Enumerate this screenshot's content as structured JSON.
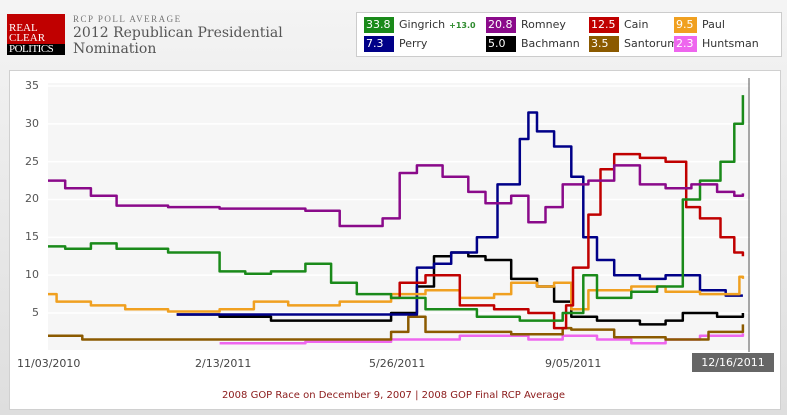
{
  "header": {
    "logo": [
      "REAL",
      "CLEAR",
      "POLITICS"
    ],
    "kicker": "RCP POLL AVERAGE",
    "title": "2012 Republican Presidential Nomination"
  },
  "legend": [
    {
      "value": "33.8",
      "name": "Gingrich",
      "change": "+13.0",
      "color": "#1a8a1a"
    },
    {
      "value": "20.8",
      "name": "Romney",
      "color": "#8a0a8a"
    },
    {
      "value": "12.5",
      "name": "Cain",
      "color": "#c00000"
    },
    {
      "value": "9.5",
      "name": "Paul",
      "color": "#f0a020"
    },
    {
      "value": "7.3",
      "name": "Perry",
      "color": "#000088"
    },
    {
      "value": "5.0",
      "name": "Bachmann",
      "color": "#000000"
    },
    {
      "value": "3.5",
      "name": "Santorum",
      "color": "#8b5a00"
    },
    {
      "value": "2.3",
      "name": "Huntsman",
      "color": "#ee66ee"
    }
  ],
  "footer": {
    "link1": "2008 GOP Race on December 9, 2007",
    "separator": " | ",
    "link2": "2008 GOP Final RCP Average"
  },
  "chart_data": {
    "type": "line",
    "title": "2012 Republican Presidential Nomination",
    "xlabel": "",
    "ylabel": "",
    "ylim": [
      0,
      35
    ],
    "yticks": [
      "35",
      "30",
      "25",
      "20",
      "15",
      "10",
      "5"
    ],
    "xticks": [
      "11/03/2010",
      "2/13/2011",
      "5/26/2011",
      "9/05/2011",
      "12/16/2011"
    ],
    "x_unit": "days since 11/03/2010",
    "xlim": [
      0,
      408
    ],
    "grid": true,
    "series": [
      {
        "name": "Romney",
        "color": "#8a0a8a",
        "x": [
          0,
          10,
          25,
          40,
          70,
          100,
          120,
          150,
          170,
          175,
          195,
          205,
          215,
          225,
          230,
          245,
          255,
          270,
          280,
          290,
          300,
          315,
          330,
          345,
          360,
          375,
          390,
          400,
          405
        ],
        "y": [
          22.5,
          21.5,
          20.5,
          19.2,
          19,
          18.8,
          18.8,
          18.5,
          16.5,
          16.5,
          17.5,
          23.5,
          24.5,
          24.5,
          23,
          21,
          19.5,
          20.5,
          17,
          19,
          22,
          22.5,
          24.5,
          22,
          21.5,
          22,
          21,
          20.5,
          20.8
        ]
      },
      {
        "name": "Gingrich",
        "color": "#1a8a1a",
        "x": [
          0,
          10,
          25,
          40,
          45,
          70,
          90,
          100,
          115,
          130,
          150,
          165,
          180,
          200,
          220,
          250,
          275,
          300,
          312,
          320,
          340,
          355,
          370,
          380,
          392,
          400,
          405
        ],
        "y": [
          13.8,
          13.5,
          14.2,
          13.5,
          13.5,
          13,
          13,
          10.5,
          10.2,
          10.5,
          11.5,
          9,
          7.5,
          7,
          5.5,
          4.5,
          4,
          5,
          10,
          7,
          7.8,
          8.5,
          20,
          22.5,
          25,
          30,
          33.8
        ]
      },
      {
        "name": "Cain",
        "color": "#c00000",
        "x": [
          200,
          205,
          220,
          240,
          260,
          280,
          295,
          302,
          306,
          315,
          322,
          330,
          345,
          360,
          372,
          380,
          392,
          400,
          405
        ],
        "y": [
          7,
          9,
          10,
          6,
          5.5,
          5,
          3,
          6,
          11,
          18,
          24,
          26,
          25.5,
          25,
          19,
          17.5,
          15,
          13,
          12.5
        ]
      },
      {
        "name": "Paul",
        "color": "#f0a020",
        "x": [
          0,
          5,
          25,
          45,
          70,
          100,
          120,
          140,
          170,
          200,
          220,
          240,
          260,
          270,
          285,
          295,
          305,
          315,
          340,
          360,
          380,
          400,
          403,
          405
        ],
        "y": [
          7.5,
          6.5,
          6,
          5.5,
          5.2,
          5.5,
          6.5,
          6,
          6.5,
          7.5,
          8,
          7,
          7.5,
          9,
          8.5,
          9,
          5.5,
          8,
          8.5,
          7.8,
          7.5,
          7.5,
          9.8,
          9.5
        ]
      },
      {
        "name": "Perry",
        "color": "#000088",
        "x": [
          75,
          150,
          200,
          215,
          225,
          235,
          250,
          262,
          275,
          280,
          285,
          295,
          305,
          312,
          320,
          330,
          345,
          360,
          380,
          395,
          405
        ],
        "y": [
          4.8,
          4.8,
          4.8,
          11,
          11.5,
          13,
          15,
          22,
          28,
          31.5,
          29,
          27,
          23,
          15,
          12,
          10,
          9.5,
          10,
          8,
          7.3,
          7.3
        ]
      },
      {
        "name": "Bachmann",
        "color": "#000000",
        "x": [
          75,
          100,
          130,
          175,
          200,
          215,
          225,
          235,
          245,
          255,
          270,
          285,
          295,
          305,
          320,
          345,
          360,
          370,
          390,
          405
        ],
        "y": [
          4.8,
          4.5,
          4,
          4,
          5,
          8.5,
          12.5,
          13,
          12.5,
          12,
          9.5,
          8.5,
          6.5,
          4.5,
          4,
          3.5,
          4,
          5,
          4.5,
          5.0
        ]
      },
      {
        "name": "Santorum",
        "color": "#8b5a00",
        "x": [
          0,
          20,
          60,
          100,
          150,
          200,
          210,
          220,
          240,
          270,
          300,
          305,
          330,
          360,
          385,
          405
        ],
        "y": [
          2,
          1.5,
          1.5,
          1.5,
          1.5,
          2.5,
          4.5,
          2.5,
          2.5,
          2.2,
          3,
          2.8,
          1.8,
          1.5,
          2.5,
          3.5
        ]
      },
      {
        "name": "Huntsman",
        "color": "#ee66ee",
        "x": [
          100,
          150,
          200,
          240,
          280,
          300,
          320,
          340,
          360,
          380,
          405
        ],
        "y": [
          1,
          1.2,
          1.5,
          2,
          1.5,
          2,
          1.5,
          1,
          1.5,
          2,
          2.3
        ]
      }
    ]
  }
}
